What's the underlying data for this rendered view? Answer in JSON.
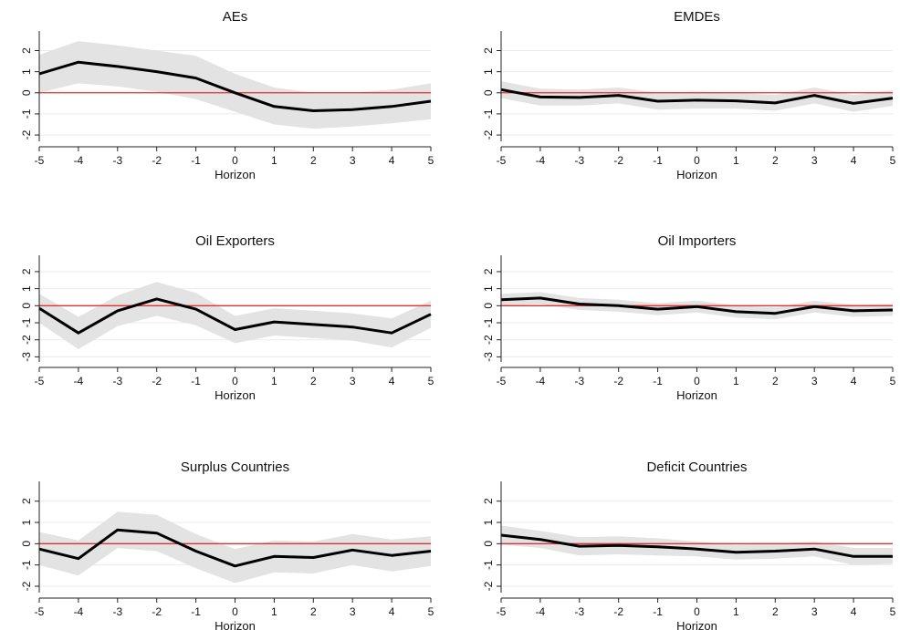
{
  "colors": {
    "line": "#000000",
    "band": "#e3e3e3",
    "zero_line": "#e03030",
    "grid": "#ebebeb",
    "axis": "#222222"
  },
  "chart_data": [
    {
      "type": "line",
      "title": "AEs",
      "xlabel": "Horizon",
      "ylabel": "",
      "x": [
        -5,
        -4,
        -3,
        -2,
        -1,
        0,
        1,
        2,
        3,
        4,
        5
      ],
      "xticks": [
        "-5",
        "-4",
        "-3",
        "-2",
        "-1",
        "0",
        "1",
        "2",
        "3",
        "4",
        "5"
      ],
      "yticks": [
        -2,
        -1,
        0,
        1,
        2
      ],
      "ylim": [
        -2.3,
        2.8
      ],
      "estimate": [
        0.9,
        1.45,
        1.25,
        1.0,
        0.7,
        0.0,
        -0.65,
        -0.85,
        -0.8,
        -0.65,
        -0.4
      ],
      "lower": [
        0.0,
        0.45,
        0.3,
        0.05,
        -0.3,
        -0.9,
        -1.5,
        -1.7,
        -1.6,
        -1.45,
        -1.25
      ],
      "upper": [
        1.8,
        2.45,
        2.25,
        2.0,
        1.75,
        0.9,
        0.25,
        0.0,
        0.0,
        0.15,
        0.45
      ],
      "zero_line": 0,
      "grid": true
    },
    {
      "type": "line",
      "title": "EMDEs",
      "xlabel": "Horizon",
      "ylabel": "",
      "x": [
        -5,
        -4,
        -3,
        -2,
        -1,
        0,
        1,
        2,
        3,
        4,
        5
      ],
      "xticks": [
        "-5",
        "-4",
        "-3",
        "-2",
        "-1",
        "0",
        "1",
        "2",
        "3",
        "4",
        "5"
      ],
      "yticks": [
        -2,
        -1,
        0,
        1,
        2
      ],
      "ylim": [
        -2.3,
        2.8
      ],
      "estimate": [
        0.15,
        -0.2,
        -0.22,
        -0.12,
        -0.4,
        -0.35,
        -0.38,
        -0.48,
        -0.12,
        -0.5,
        -0.25
      ],
      "lower": [
        -0.25,
        -0.6,
        -0.6,
        -0.5,
        -0.8,
        -0.75,
        -0.75,
        -0.85,
        -0.5,
        -0.9,
        -0.62
      ],
      "upper": [
        0.55,
        0.2,
        0.15,
        0.25,
        0.0,
        0.05,
        0.0,
        -0.1,
        0.25,
        -0.1,
        0.12
      ],
      "zero_line": 0,
      "grid": true
    },
    {
      "type": "line",
      "title": "Oil Exporters",
      "xlabel": "Horizon",
      "ylabel": "",
      "x": [
        -5,
        -4,
        -3,
        -2,
        -1,
        0,
        1,
        2,
        3,
        4,
        5
      ],
      "xticks": [
        "-5",
        "-4",
        "-3",
        "-2",
        "-1",
        "0",
        "1",
        "2",
        "3",
        "4",
        "5"
      ],
      "yticks": [
        -3,
        -2,
        -1,
        0,
        1,
        2
      ],
      "ylim": [
        -3.3,
        2.8
      ],
      "estimate": [
        -0.15,
        -1.6,
        -0.3,
        0.4,
        -0.2,
        -1.4,
        -0.95,
        -1.1,
        -1.25,
        -1.6,
        -0.5
      ],
      "lower": [
        -1.0,
        -2.55,
        -1.2,
        -0.6,
        -1.15,
        -2.2,
        -1.75,
        -1.9,
        -2.05,
        -2.45,
        -1.3
      ],
      "upper": [
        0.7,
        -0.65,
        0.6,
        1.4,
        0.75,
        -0.6,
        -0.15,
        -0.3,
        -0.45,
        -0.75,
        0.3
      ],
      "zero_line": 0,
      "grid": true
    },
    {
      "type": "line",
      "title": "Oil Importers",
      "xlabel": "Horizon",
      "ylabel": "",
      "x": [
        -5,
        -4,
        -3,
        -2,
        -1,
        0,
        1,
        2,
        3,
        4,
        5
      ],
      "xticks": [
        "-5",
        "-4",
        "-3",
        "-2",
        "-1",
        "0",
        "1",
        "2",
        "3",
        "4",
        "5"
      ],
      "yticks": [
        -3,
        -2,
        -1,
        0,
        1,
        2
      ],
      "ylim": [
        -3.3,
        2.8
      ],
      "estimate": [
        0.35,
        0.45,
        0.1,
        0.0,
        -0.2,
        -0.05,
        -0.35,
        -0.45,
        -0.05,
        -0.3,
        -0.25
      ],
      "lower": [
        0.0,
        0.1,
        -0.25,
        -0.35,
        -0.55,
        -0.4,
        -0.7,
        -0.8,
        -0.4,
        -0.65,
        -0.6
      ],
      "upper": [
        0.7,
        0.8,
        0.45,
        0.35,
        0.15,
        0.3,
        0.0,
        -0.1,
        0.3,
        0.05,
        0.1
      ],
      "zero_line": 0,
      "grid": true
    },
    {
      "type": "line",
      "title": "Surplus Countries",
      "xlabel": "Horizon",
      "ylabel": "",
      "x": [
        -5,
        -4,
        -3,
        -2,
        -1,
        0,
        1,
        2,
        3,
        4,
        5
      ],
      "xticks": [
        "-5",
        "-4",
        "-3",
        "-2",
        "-1",
        "0",
        "1",
        "2",
        "3",
        "4",
        "5"
      ],
      "yticks": [
        -2,
        -1,
        0,
        1,
        2
      ],
      "ylim": [
        -2.3,
        2.8
      ],
      "estimate": [
        -0.25,
        -0.7,
        0.65,
        0.5,
        -0.35,
        -1.05,
        -0.6,
        -0.65,
        -0.3,
        -0.55,
        -0.35
      ],
      "lower": [
        -1.0,
        -1.5,
        -0.2,
        -0.35,
        -1.15,
        -1.85,
        -1.35,
        -1.4,
        -1.0,
        -1.3,
        -1.05
      ],
      "upper": [
        0.55,
        0.15,
        1.5,
        1.35,
        0.45,
        -0.25,
        0.15,
        0.1,
        0.45,
        0.2,
        0.35
      ],
      "zero_line": 0,
      "grid": true
    },
    {
      "type": "line",
      "title": "Deficit Countries",
      "xlabel": "Horizon",
      "ylabel": "",
      "x": [
        -5,
        -4,
        -3,
        -2,
        -1,
        0,
        1,
        2,
        3,
        4,
        5
      ],
      "xticks": [
        "-5",
        "-4",
        "-3",
        "-2",
        "-1",
        "0",
        "1",
        "2",
        "3",
        "4",
        "5"
      ],
      "yticks": [
        -2,
        -1,
        0,
        1,
        2
      ],
      "ylim": [
        -2.3,
        2.8
      ],
      "estimate": [
        0.4,
        0.2,
        -0.12,
        -0.08,
        -0.15,
        -0.25,
        -0.4,
        -0.35,
        -0.25,
        -0.6,
        -0.6
      ],
      "lower": [
        -0.05,
        -0.2,
        -0.55,
        -0.5,
        -0.55,
        -0.6,
        -0.75,
        -0.7,
        -0.6,
        -1.0,
        -0.95
      ],
      "upper": [
        0.85,
        0.6,
        0.3,
        0.35,
        0.25,
        0.1,
        -0.05,
        0.0,
        0.1,
        -0.2,
        -0.2
      ],
      "zero_line": 0,
      "grid": true
    }
  ]
}
